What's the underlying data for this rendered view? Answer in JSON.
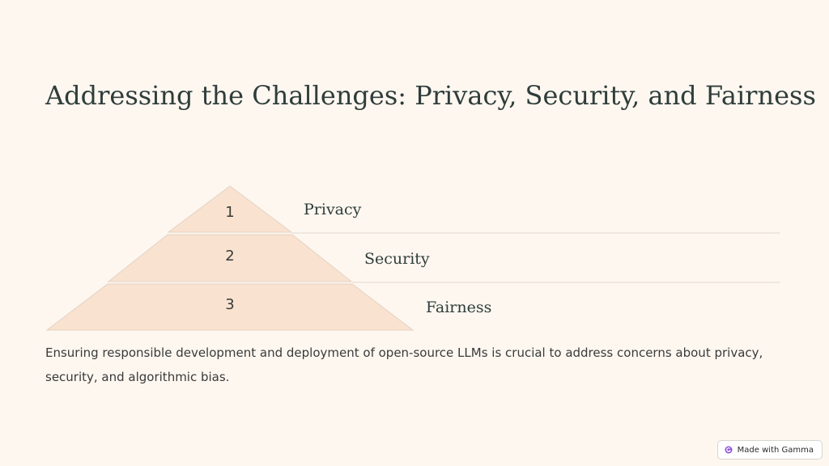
{
  "slide": {
    "title": "Addressing the Challenges: Privacy, Security, and Fairness",
    "body": "Ensuring responsible development and deployment of open-source LLMs is crucial to address concerns about privacy, security, and algorithmic bias."
  },
  "pyramid": {
    "levels": [
      {
        "number": "1",
        "label": "Privacy"
      },
      {
        "number": "2",
        "label": "Security"
      },
      {
        "number": "3",
        "label": "Fairness"
      }
    ],
    "fill_color": "#f9e2cf",
    "stroke_color": "#e3d3c3"
  },
  "badge": {
    "text": "Made with Gamma",
    "icon": "gamma-logo-icon"
  }
}
